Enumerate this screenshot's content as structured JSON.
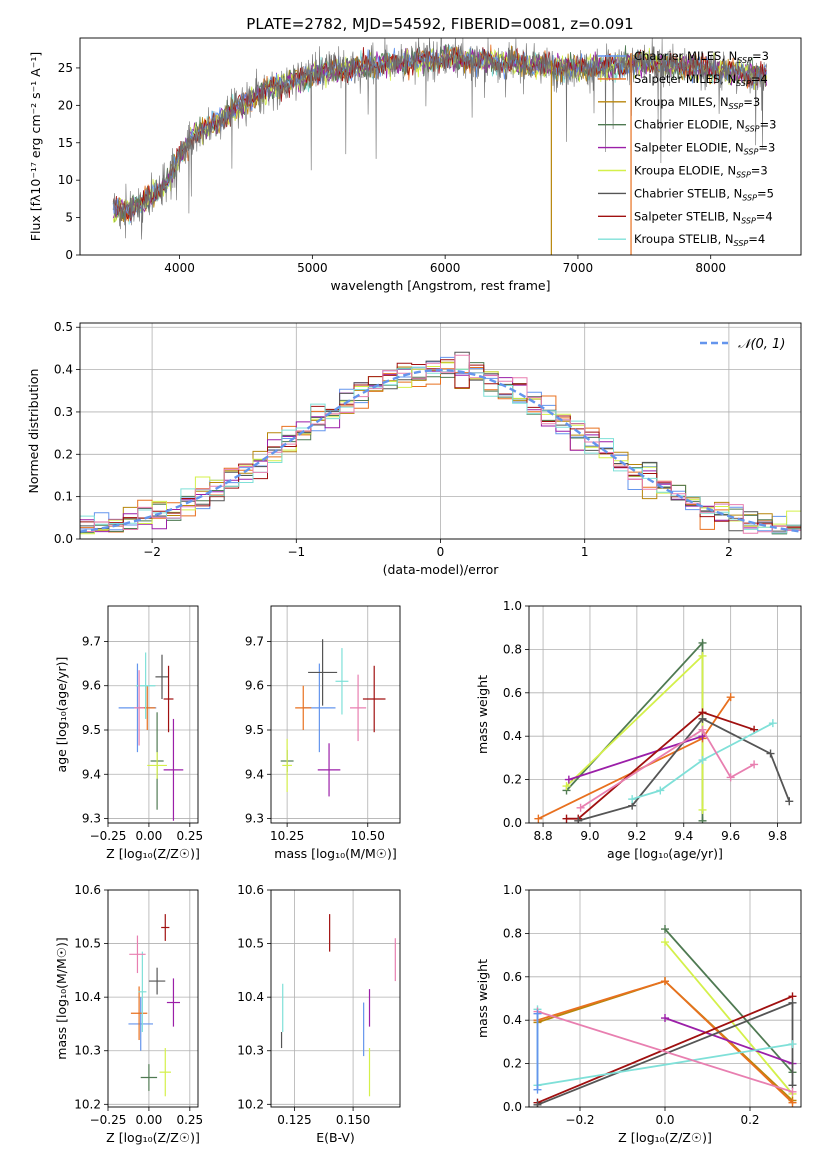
{
  "figure_title": "PLATE=2782, MJD=54592, FIBERID=0081, z=0.091",
  "colors": {
    "chabrier_miles": "#6495ed",
    "salpeter_miles": "#e8701f",
    "kroupa_miles": "#b8860b",
    "chabrier_elodie": "#4f7a52",
    "salpeter_elodie": "#9b1fa8",
    "kroupa_elodie": "#d4f04a",
    "chabrier_stelib": "#555555",
    "salpeter_stelib": "#a01010",
    "kroupa_stelib": "#7fe0d8",
    "pink": "#e87fb0",
    "normal_curve": "#6495ed"
  },
  "legend_spectrum": [
    {
      "name": "Chabrier MILES, N",
      "sub": "SSP",
      "tail": "=3",
      "color": "#6495ed"
    },
    {
      "name": "Salpeter MILES, N",
      "sub": "SSP",
      "tail": "=4",
      "color": "#e8701f"
    },
    {
      "name": "Kroupa MILES, N",
      "sub": "SSP",
      "tail": "=3",
      "color": "#b8860b"
    },
    {
      "name": "Chabrier ELODIE, N",
      "sub": "SSP",
      "tail": "=3",
      "color": "#4f7a52"
    },
    {
      "name": "Salpeter ELODIE, N",
      "sub": "SSP",
      "tail": "=3",
      "color": "#9b1fa8"
    },
    {
      "name": "Kroupa ELODIE, N",
      "sub": "SSP",
      "tail": "=3",
      "color": "#d4f04a"
    },
    {
      "name": "Chabrier STELIB, N",
      "sub": "SSP",
      "tail": "=5",
      "color": "#555555"
    },
    {
      "name": "Salpeter STELIB, N",
      "sub": "SSP",
      "tail": "=4",
      "color": "#a01010"
    },
    {
      "name": "Kroupa STELIB, N",
      "sub": "SSP",
      "tail": "=4",
      "color": "#7fe0d8"
    }
  ],
  "chart_data": [
    {
      "id": "spectrum",
      "type": "line",
      "xlabel": "wavelength [Angstrom, rest frame]",
      "ylabel": "Flux [fλ10⁻¹⁷ erg cm⁻² s⁻¹ A⁻¹]",
      "xlim": [
        3250,
        8680
      ],
      "ylim": [
        0,
        29
      ],
      "xticks": [
        4000,
        5000,
        6000,
        7000,
        8000
      ],
      "yticks": [
        0,
        5,
        10,
        15,
        20,
        25
      ],
      "grid": false,
      "legend": "upper-right",
      "x_start": 3500,
      "x_end": 8420,
      "continuum": {
        "x": [
          3500,
          3700,
          3900,
          4000,
          4100,
          4300,
          4500,
          4700,
          4900,
          5100,
          5300,
          5500,
          5800,
          6000,
          6300,
          6600,
          6900,
          7200,
          7500,
          7800,
          8100,
          8400
        ],
        "y": [
          6.0,
          6.5,
          9.5,
          13.0,
          16.0,
          18.0,
          20.5,
          22.5,
          23.5,
          24.5,
          25.0,
          25.5,
          26.0,
          26.2,
          26.0,
          25.5,
          25.0,
          25.0,
          25.8,
          25.2,
          24.6,
          24.0
        ]
      },
      "vlines": [
        {
          "x": 6800,
          "y0": 0,
          "y1": 26,
          "color": "#b8860b"
        },
        {
          "x": 7400,
          "y0": 0,
          "y1": 27,
          "color": "#e8701f"
        }
      ]
    },
    {
      "id": "residuals",
      "type": "step",
      "xlabel": "(data-model)/error",
      "ylabel": "Normed distribution",
      "xlim": [
        -2.5,
        2.5
      ],
      "ylim": [
        0,
        0.51
      ],
      "xticks": [
        -2,
        -1,
        0,
        1,
        2
      ],
      "yticks": [
        0.0,
        0.1,
        0.2,
        0.3,
        0.4,
        0.5
      ],
      "grid": true,
      "legend": "upper-right",
      "normal_label": "𝒩(0, 1)",
      "bin_start": -2.5,
      "bin_width": 0.1,
      "n_bins": 50
    },
    {
      "id": "z-age",
      "type": "errorbar",
      "xlabel": "Z [log₁₀(Z/Z☉)]",
      "ylabel": "age  [log₁₀(age/yr)]",
      "xlim": [
        -0.25,
        0.3
      ],
      "ylim": [
        9.29,
        9.78
      ],
      "xticks": [
        -0.25,
        0.0,
        0.25
      ],
      "yticks": [
        9.3,
        9.4,
        9.5,
        9.6,
        9.7
      ],
      "grid": true,
      "points": [
        {
          "x": -0.07,
          "xe": 0.23,
          "y": 9.55,
          "ye": 0.2,
          "color": "#6495ed"
        },
        {
          "x": -0.01,
          "xe": 0.1,
          "y": 9.55,
          "ye": 0.1,
          "color": "#e8701f"
        },
        {
          "x": 0.05,
          "xe": 0.08,
          "y": 9.43,
          "ye": 0.22,
          "color": "#4f7a52"
        },
        {
          "x": 0.15,
          "xe": 0.12,
          "y": 9.41,
          "ye": 0.23,
          "color": "#9b1fa8"
        },
        {
          "x": 0.05,
          "xe": 0.12,
          "y": 9.42,
          "ye": 0.06,
          "color": "#d4f04a"
        },
        {
          "x": 0.08,
          "xe": 0.08,
          "y": 9.62,
          "ye": 0.1,
          "color": "#555555"
        },
        {
          "x": 0.12,
          "xe": 0.06,
          "y": 9.57,
          "ye": 0.15,
          "color": "#a01010"
        },
        {
          "x": -0.02,
          "xe": 0.12,
          "y": 9.6,
          "ye": 0.15,
          "color": "#7fe0d8"
        },
        {
          "x": -0.06,
          "xe": 0.06,
          "y": 9.55,
          "ye": 0.17,
          "color": "#e87fb0"
        }
      ]
    },
    {
      "id": "mass-age",
      "type": "errorbar",
      "xlabel": "mass [log₁₀(M/M☉)]",
      "ylabel": "",
      "xlim": [
        10.2,
        10.6
      ],
      "ylim": [
        9.29,
        9.78
      ],
      "xticks": [
        10.25,
        10.5
      ],
      "yticks": [
        9.3,
        9.4,
        9.5,
        9.6,
        9.7
      ],
      "grid": true,
      "points": [
        {
          "x": 10.35,
          "xe": 0.1,
          "y": 9.55,
          "ye": 0.2,
          "color": "#6495ed"
        },
        {
          "x": 10.3,
          "xe": 0.05,
          "y": 9.55,
          "ye": 0.1,
          "color": "#e8701f"
        },
        {
          "x": 10.25,
          "xe": 0.04,
          "y": 9.43,
          "ye": 0.05,
          "color": "#4f7a52"
        },
        {
          "x": 10.38,
          "xe": 0.07,
          "y": 9.41,
          "ye": 0.12,
          "color": "#9b1fa8"
        },
        {
          "x": 10.25,
          "xe": 0.03,
          "y": 9.42,
          "ye": 0.12,
          "color": "#d4f04a"
        },
        {
          "x": 10.36,
          "xe": 0.09,
          "y": 9.63,
          "ye": 0.15,
          "color": "#555555"
        },
        {
          "x": 10.52,
          "xe": 0.07,
          "y": 9.57,
          "ye": 0.15,
          "color": "#a01010"
        },
        {
          "x": 10.42,
          "xe": 0.04,
          "y": 9.61,
          "ye": 0.15,
          "color": "#7fe0d8"
        },
        {
          "x": 10.47,
          "xe": 0.05,
          "y": 9.55,
          "ye": 0.15,
          "color": "#e87fb0"
        }
      ]
    },
    {
      "id": "age-weight",
      "type": "line",
      "xlabel": "age  [log₁₀(age/yr)]",
      "ylabel": "mass weight",
      "xlim": [
        8.74,
        9.9
      ],
      "ylim": [
        0,
        1.0
      ],
      "xticks": [
        8.8,
        9.0,
        9.2,
        9.4,
        9.6,
        9.8
      ],
      "yticks": [
        0.0,
        0.2,
        0.4,
        0.6,
        0.8,
        1.0
      ],
      "grid": true,
      "series": [
        {
          "color": "#4f7a52",
          "x": [
            8.9,
            9.48,
            9.48
          ],
          "y": [
            0.15,
            0.83,
            0.01
          ]
        },
        {
          "color": "#d4f04a",
          "x": [
            8.9,
            9.48,
            9.48
          ],
          "y": [
            0.17,
            0.77,
            0.06
          ]
        },
        {
          "color": "#e8701f",
          "x": [
            8.78,
            9.48,
            9.6
          ],
          "y": [
            0.02,
            0.39,
            0.58
          ]
        },
        {
          "color": "#9b1fa8",
          "x": [
            8.91,
            9.48
          ],
          "y": [
            0.2,
            0.4
          ]
        },
        {
          "color": "#a01010",
          "x": [
            8.9,
            8.95,
            9.48,
            9.7
          ],
          "y": [
            0.02,
            0.02,
            0.51,
            0.43
          ]
        },
        {
          "color": "#555555",
          "x": [
            8.95,
            9.18,
            9.48,
            9.77,
            9.85
          ],
          "y": [
            0.01,
            0.08,
            0.48,
            0.32,
            0.1
          ]
        },
        {
          "color": "#7fe0d8",
          "x": [
            9.18,
            9.3,
            9.48,
            9.78
          ],
          "y": [
            0.11,
            0.15,
            0.29,
            0.46
          ]
        },
        {
          "color": "#e87fb0",
          "x": [
            8.96,
            9.48,
            9.6,
            9.7
          ],
          "y": [
            0.07,
            0.43,
            0.21,
            0.27
          ]
        }
      ]
    },
    {
      "id": "z-mass",
      "type": "errorbar",
      "xlabel": "Z [log₁₀(Z/Z☉)]",
      "ylabel": "mass [log₁₀(M/M☉)]",
      "xlim": [
        -0.25,
        0.3
      ],
      "ylim": [
        10.195,
        10.6
      ],
      "xticks": [
        -0.25,
        0.0,
        0.25
      ],
      "yticks": [
        10.2,
        10.3,
        10.4,
        10.5,
        10.6
      ],
      "grid": true,
      "points": [
        {
          "x": -0.05,
          "xe": 0.15,
          "y": 10.35,
          "ye": 0.1,
          "color": "#6495ed"
        },
        {
          "x": -0.06,
          "xe": 0.1,
          "y": 10.37,
          "ye": 0.1,
          "color": "#e8701f"
        },
        {
          "x": 0.0,
          "xe": 0.1,
          "y": 10.25,
          "ye": 0.05,
          "color": "#4f7a52"
        },
        {
          "x": 0.15,
          "xe": 0.08,
          "y": 10.39,
          "ye": 0.09,
          "color": "#9b1fa8"
        },
        {
          "x": 0.1,
          "xe": 0.07,
          "y": 10.26,
          "ye": 0.09,
          "color": "#d4f04a"
        },
        {
          "x": 0.05,
          "xe": 0.1,
          "y": 10.43,
          "ye": 0.05,
          "color": "#555555"
        },
        {
          "x": 0.1,
          "xe": 0.05,
          "y": 10.53,
          "ye": 0.05,
          "color": "#a01010"
        },
        {
          "x": -0.04,
          "xe": 0.05,
          "y": 10.41,
          "ye": 0.15,
          "color": "#7fe0d8"
        },
        {
          "x": -0.07,
          "xe": 0.1,
          "y": 10.48,
          "ye": 0.07,
          "color": "#e87fb0"
        }
      ]
    },
    {
      "id": "ebv-mass",
      "type": "errorbar",
      "xlabel": "E(B-V)",
      "ylabel": "",
      "xlim": [
        0.115,
        0.17
      ],
      "ylim": [
        10.195,
        10.6
      ],
      "xticks": [
        0.125,
        0.15
      ],
      "yticks": [
        10.2,
        10.3,
        10.4,
        10.5,
        10.6
      ],
      "grid": true,
      "points": [
        {
          "x": 0.1545,
          "y": 10.34,
          "ye": 0.1,
          "color": "#6495ed"
        },
        {
          "x": 0.12,
          "y": 10.38,
          "ye": 0.09,
          "color": "#7fe0d8"
        },
        {
          "x": 0.1195,
          "y": 10.32,
          "ye": 0.03,
          "color": "#555555"
        },
        {
          "x": 0.14,
          "y": 10.52,
          "ye": 0.07,
          "color": "#a01010"
        },
        {
          "x": 0.157,
          "y": 10.38,
          "ye": 0.07,
          "color": "#9b1fa8"
        },
        {
          "x": 0.157,
          "y": 10.26,
          "ye": 0.09,
          "color": "#d4f04a"
        },
        {
          "x": 0.168,
          "y": 10.47,
          "ye": 0.08,
          "color": "#e87fb0"
        }
      ]
    },
    {
      "id": "z-weight",
      "type": "line",
      "xlabel": "Z [log₁₀(Z/Z☉)]",
      "ylabel": "mass weight",
      "xlim": [
        -0.32,
        0.32
      ],
      "ylim": [
        0,
        1.0
      ],
      "xticks": [
        -0.2,
        0.0,
        0.2
      ],
      "yticks": [
        0.0,
        0.2,
        0.4,
        0.6,
        0.8,
        1.0
      ],
      "grid": true,
      "series": [
        {
          "color": "#4f7a52",
          "x": [
            0.0,
            0.3
          ],
          "y": [
            0.82,
            0.16
          ]
        },
        {
          "color": "#d4f04a",
          "x": [
            0.0,
            0.3
          ],
          "y": [
            0.76,
            0.06
          ]
        },
        {
          "color": "#b8860b",
          "x": [
            -0.3,
            0.0,
            0.3
          ],
          "y": [
            0.39,
            0.58,
            0.03
          ]
        },
        {
          "color": "#e8701f",
          "x": [
            -0.3,
            0.0,
            0.3
          ],
          "y": [
            0.4,
            0.58,
            0.02
          ]
        },
        {
          "color": "#9b1fa8",
          "x": [
            0.0,
            0.3
          ],
          "y": [
            0.41,
            0.2
          ]
        },
        {
          "color": "#a01010",
          "x": [
            -0.3,
            0.3
          ],
          "y": [
            0.02,
            0.51
          ]
        },
        {
          "color": "#555555",
          "x": [
            -0.3,
            0.3,
            0.3
          ],
          "y": [
            0.01,
            0.48,
            0.1
          ]
        },
        {
          "color": "#7fe0d8",
          "x": [
            -0.3,
            -0.3,
            0.3
          ],
          "y": [
            0.45,
            0.1,
            0.29
          ]
        },
        {
          "color": "#e87fb0",
          "x": [
            -0.3,
            0.3
          ],
          "y": [
            0.44,
            0.07
          ]
        },
        {
          "color": "#6495ed",
          "x": [
            -0.3,
            -0.3
          ],
          "y": [
            0.43,
            0.08
          ]
        }
      ]
    }
  ]
}
